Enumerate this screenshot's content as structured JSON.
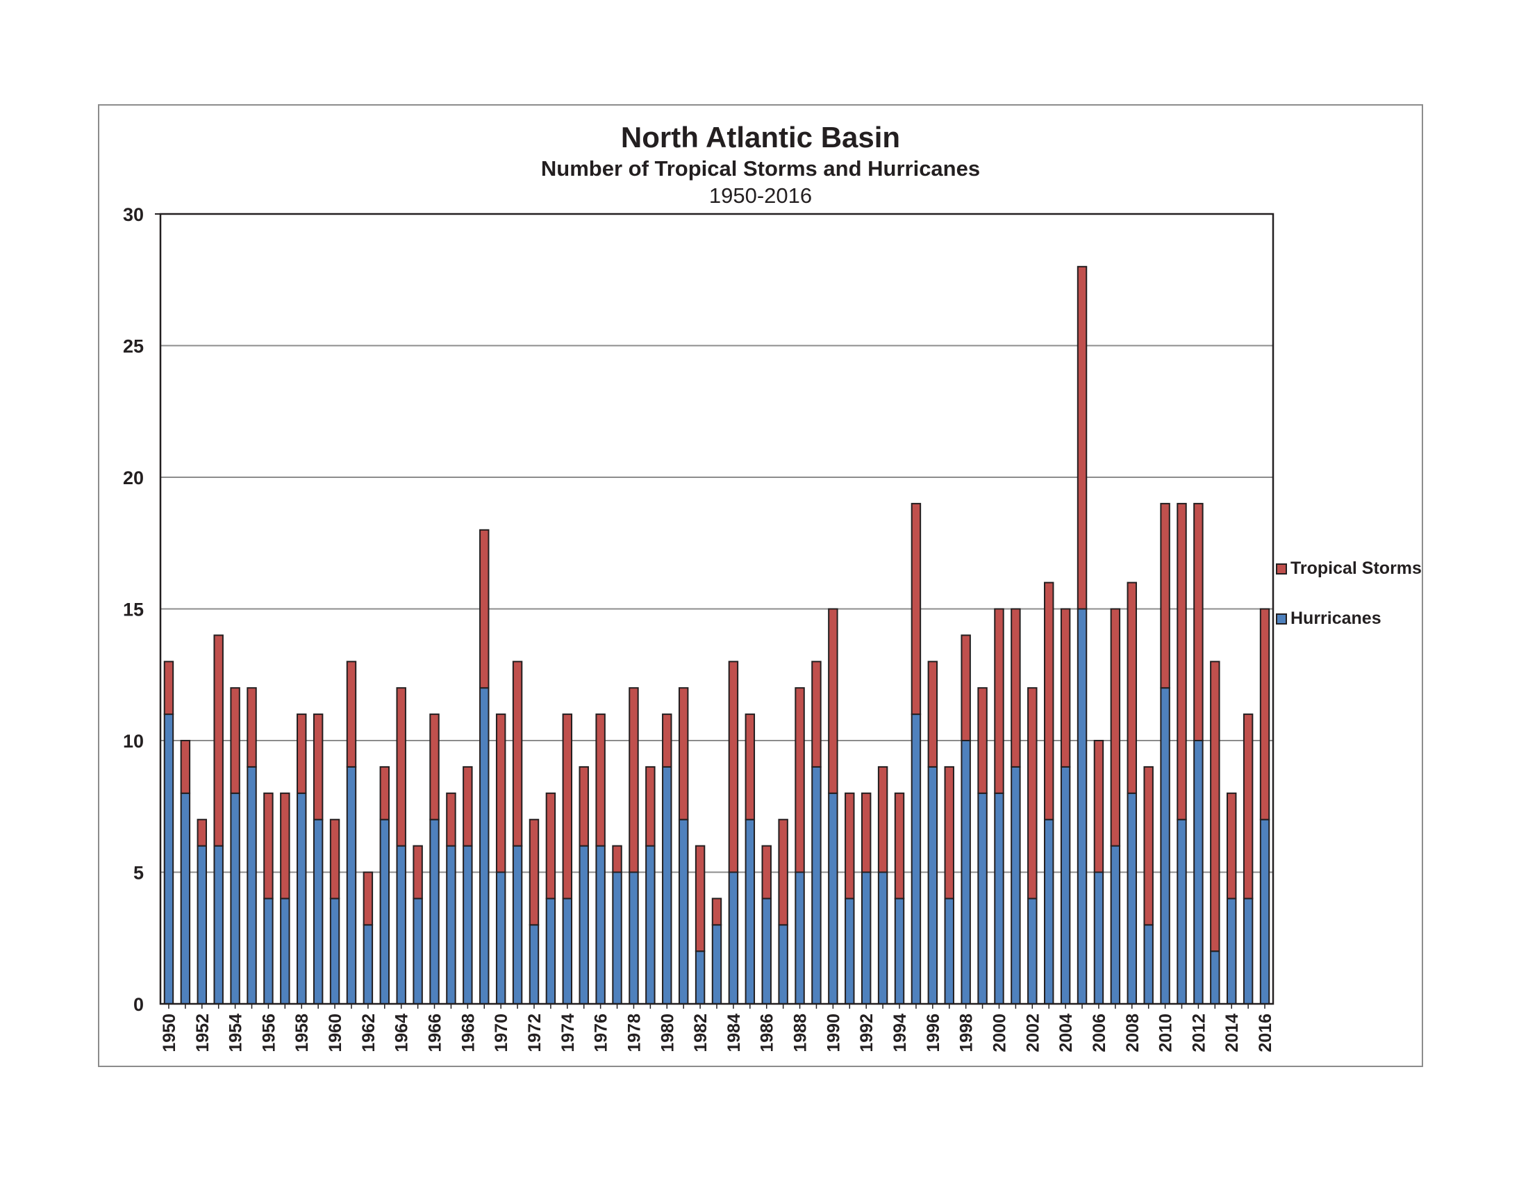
{
  "chart_data": {
    "type": "bar",
    "stacked": true,
    "title": "North Atlantic Basin",
    "subtitle": "Number of Tropical Storms and Hurricanes",
    "subtitle2": "1950-2016",
    "xlabel": "",
    "ylabel": "",
    "ylim": [
      0,
      30
    ],
    "yticks": [
      0,
      5,
      10,
      15,
      20,
      25,
      30
    ],
    "grid": true,
    "legend_position": "right",
    "categories": [
      1950,
      1951,
      1952,
      1953,
      1954,
      1955,
      1956,
      1957,
      1958,
      1959,
      1960,
      1961,
      1962,
      1963,
      1964,
      1965,
      1966,
      1967,
      1968,
      1969,
      1970,
      1971,
      1972,
      1973,
      1974,
      1975,
      1976,
      1977,
      1978,
      1979,
      1980,
      1981,
      1982,
      1983,
      1984,
      1985,
      1986,
      1987,
      1988,
      1989,
      1990,
      1991,
      1992,
      1993,
      1994,
      1995,
      1996,
      1997,
      1998,
      1999,
      2000,
      2001,
      2002,
      2003,
      2004,
      2005,
      2006,
      2007,
      2008,
      2009,
      2010,
      2011,
      2012,
      2013,
      2014,
      2015,
      2016
    ],
    "xtick_labels": [
      "1950",
      "1952",
      "1954",
      "1956",
      "1958",
      "1960",
      "1962",
      "1964",
      "1966",
      "1968",
      "1970",
      "1972",
      "1974",
      "1976",
      "1978",
      "1980",
      "1982",
      "1984",
      "1986",
      "1988",
      "1990",
      "1992",
      "1994",
      "1996",
      "1998",
      "2000",
      "2002",
      "2004",
      "2006",
      "2008",
      "2010",
      "2012",
      "2014",
      "2016"
    ],
    "series": [
      {
        "name": "Hurricanes",
        "color": "#4f81bd",
        "values": [
          11,
          8,
          6,
          6,
          8,
          9,
          4,
          4,
          8,
          7,
          4,
          9,
          3,
          7,
          6,
          4,
          7,
          6,
          6,
          12,
          5,
          6,
          3,
          4,
          4,
          6,
          6,
          5,
          5,
          6,
          9,
          7,
          2,
          3,
          5,
          7,
          4,
          3,
          5,
          9,
          8,
          4,
          5,
          5,
          4,
          11,
          9,
          4,
          10,
          8,
          8,
          9,
          4,
          7,
          9,
          15,
          5,
          6,
          8,
          3,
          12,
          7,
          10,
          2,
          4,
          4,
          7
        ]
      },
      {
        "name": "Tropical Storms",
        "color": "#c0504d",
        "values": [
          2,
          2,
          1,
          8,
          4,
          3,
          4,
          4,
          3,
          4,
          3,
          4,
          2,
          2,
          6,
          2,
          4,
          2,
          3,
          6,
          6,
          7,
          4,
          4,
          7,
          3,
          5,
          1,
          7,
          3,
          2,
          5,
          4,
          1,
          8,
          4,
          2,
          4,
          7,
          4,
          7,
          4,
          3,
          4,
          4,
          8,
          4,
          5,
          4,
          4,
          7,
          6,
          8,
          9,
          6,
          13,
          5,
          9,
          8,
          6,
          7,
          12,
          9,
          11,
          4,
          7,
          8
        ]
      }
    ]
  }
}
